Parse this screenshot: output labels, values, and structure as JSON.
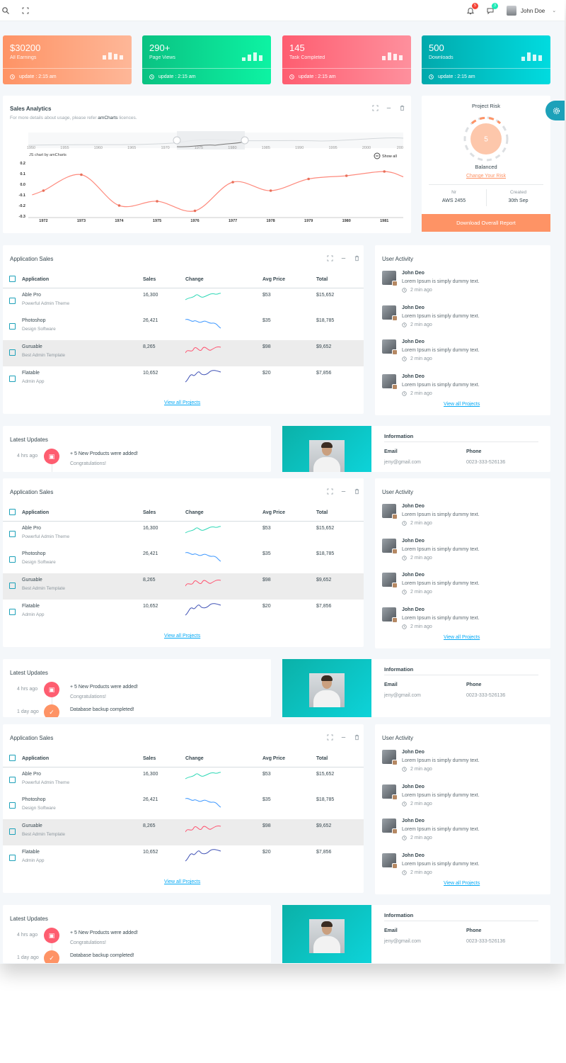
{
  "header": {
    "user_name": "John Doe",
    "notif_count": "5",
    "msg_count": "3",
    "colors": {
      "notif": "#f44236",
      "msg": "#1de9b6"
    }
  },
  "stats": [
    {
      "value": "$30200",
      "label": "All Earnings",
      "update": "update : 2:15 am",
      "gradient": [
        "#fe9365",
        "#feb798"
      ]
    },
    {
      "value": "290+",
      "label": "Page Views",
      "update": "update : 2:15 am",
      "gradient": [
        "#0ac282",
        "#0df3a3"
      ]
    },
    {
      "value": "145",
      "label": "Task Completed",
      "update": "update : 2:15 am",
      "gradient": [
        "#fe5d70",
        "#fe909d"
      ]
    },
    {
      "value": "500",
      "label": "Downloads",
      "update": "update : 2:15 am",
      "gradient": [
        "#01a9ac",
        "#01dbdf"
      ]
    }
  ],
  "analytics": {
    "title": "Sales Analytics",
    "subtitle_pre": "For more details about usage, please refer",
    "subtitle_link": "amCharts",
    "subtitle_post": "licences.",
    "credit": "JS chart by amCharts",
    "show_all": "Show all"
  },
  "chart_data": {
    "type": "line",
    "title": "Sales Analytics",
    "x": [
      1971.7,
      1972,
      1973,
      1974,
      1975,
      1976,
      1977,
      1978,
      1979,
      1980,
      1981,
      1981.5
    ],
    "values": [
      -0.1,
      -0.06,
      0.09,
      -0.2,
      -0.16,
      -0.25,
      0.02,
      -0.06,
      0.05,
      0.08,
      0.12,
      0.07
    ],
    "xticks": [
      "1972",
      "1973",
      "1974",
      "1975",
      "1976",
      "1977",
      "1978",
      "1979",
      "1980",
      "1981"
    ],
    "yticks": [
      "0.2",
      "0.1",
      "0.0",
      "-0.1",
      "-0.2",
      "-0.3"
    ],
    "ylim": [
      -0.3,
      0.2
    ],
    "scroll_ticks": [
      "1950",
      "1955",
      "1960",
      "1965",
      "1970",
      "1975",
      "1980",
      "1985",
      "1990",
      "1995",
      "2000",
      "200"
    ],
    "color": "#fe8a7d"
  },
  "risk": {
    "title": "Project Risk",
    "score": "5",
    "status": "Balanced",
    "change_link": "Change Your Risk",
    "nr_label": "Nr",
    "nr_value": "AWS 2455",
    "created_label": "Created",
    "created_value": "30th Sep",
    "button": "Download Overall Report"
  },
  "app_sales": {
    "title": "Application Sales",
    "columns": [
      "Application",
      "Sales",
      "Change",
      "Avg Price",
      "Total"
    ],
    "rows": [
      {
        "name": "Able Pro",
        "sub": "Powerful Admin Theme",
        "sales": "16,300",
        "price": "$53",
        "total": "$15,652",
        "spark_color": "#2ed8b6"
      },
      {
        "name": "Photoshop",
        "sub": "Design Software",
        "sales": "26,421",
        "price": "$35",
        "total": "$18,785",
        "spark_color": "#4099ff"
      },
      {
        "name": "Guruable",
        "sub": "Best Admin Template",
        "sales": "8,265",
        "price": "$98",
        "total": "$9,652",
        "spark_color": "#ff5370"
      },
      {
        "name": "Flatable",
        "sub": "Admin App",
        "sales": "10,652",
        "price": "$20",
        "total": "$7,856",
        "spark_color": "#3f51b5"
      }
    ],
    "view_all": "View all Projects"
  },
  "activity": {
    "title": "User Activity",
    "items": [
      {
        "name": "John Deo",
        "text": "Lorem Ipsum is simply dummy text.",
        "time": "2 min ago"
      },
      {
        "name": "John Deo",
        "text": "Lorem Ipsum is simply dummy text.",
        "time": "2 min ago"
      },
      {
        "name": "John Deo",
        "text": "Lorem Ipsum is simply dummy text.",
        "time": "2 min ago"
      },
      {
        "name": "John Deo",
        "text": "Lorem Ipsum is simply dummy text.",
        "time": "2 min ago"
      }
    ],
    "view_all": "View all Projects"
  },
  "updates": {
    "title": "Latest Updates",
    "items": [
      {
        "time": "4 hrs ago",
        "text": "+ 5 New Products were added!",
        "sub": "Congratulations!",
        "color": "#fe5d70"
      },
      {
        "time": "1 day ago",
        "text": "Database backup completed!",
        "sub": "",
        "color": "#fe9365"
      }
    ]
  },
  "info": {
    "title": "Information",
    "email_label": "Email",
    "email_value": "jeny@gmail.com",
    "phone_label": "Phone",
    "phone_value": "0023-333-526136"
  }
}
